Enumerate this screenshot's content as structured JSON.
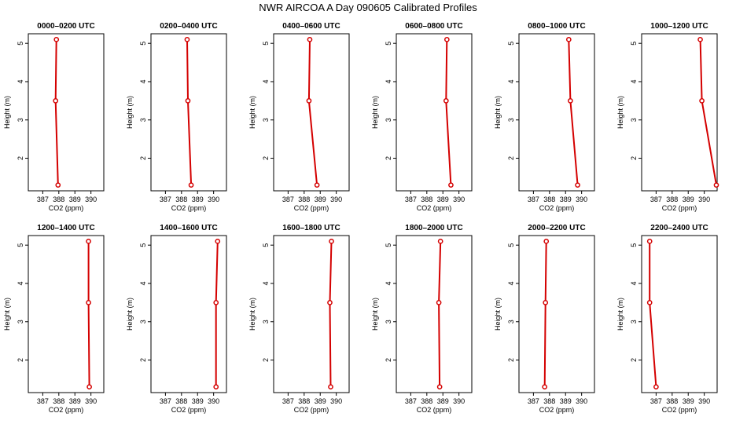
{
  "title": "NWR AIRCOA A  Day 090605  Calibrated Profiles",
  "colors": {
    "series": "#d40000",
    "axis": "#000000",
    "background": "#ffffff"
  },
  "chart_data": [
    {
      "type": "line",
      "title": "0000–0200 UTC",
      "xlabel": "CO2 (ppm)",
      "ylabel": "Height (m)",
      "xlim": [
        386.1,
        390.8
      ],
      "ylim": [
        1.15,
        5.25
      ],
      "xticks": [
        387,
        388,
        389,
        390
      ],
      "yticks": [
        2,
        3,
        4,
        5
      ],
      "x": [
        387.85,
        387.8,
        387.95
      ],
      "y": [
        5.1,
        3.5,
        1.3
      ]
    },
    {
      "type": "line",
      "title": "0200–0400 UTC",
      "xlabel": "CO2 (ppm)",
      "ylabel": "Height (m)",
      "xlim": [
        386.1,
        390.8
      ],
      "ylim": [
        1.15,
        5.25
      ],
      "xticks": [
        387,
        388,
        389,
        390
      ],
      "yticks": [
        2,
        3,
        4,
        5
      ],
      "x": [
        388.35,
        388.4,
        388.6
      ],
      "y": [
        5.1,
        3.5,
        1.3
      ]
    },
    {
      "type": "line",
      "title": "0400–0600 UTC",
      "xlabel": "CO2 (ppm)",
      "ylabel": "Height (m)",
      "xlim": [
        386.1,
        390.8
      ],
      "ylim": [
        1.15,
        5.25
      ],
      "xticks": [
        387,
        388,
        389,
        390
      ],
      "yticks": [
        2,
        3,
        4,
        5
      ],
      "x": [
        388.35,
        388.3,
        388.8
      ],
      "y": [
        5.1,
        3.5,
        1.3
      ]
    },
    {
      "type": "line",
      "title": "0600–0800 UTC",
      "xlabel": "CO2 (ppm)",
      "ylabel": "Height (m)",
      "xlim": [
        386.1,
        390.8
      ],
      "ylim": [
        1.15,
        5.25
      ],
      "xticks": [
        387,
        388,
        389,
        390
      ],
      "yticks": [
        2,
        3,
        4,
        5
      ],
      "x": [
        389.25,
        389.2,
        389.5
      ],
      "y": [
        5.1,
        3.5,
        1.3
      ]
    },
    {
      "type": "line",
      "title": "0800–1000 UTC",
      "xlabel": "CO2 (ppm)",
      "ylabel": "Height (m)",
      "xlim": [
        386.1,
        390.8
      ],
      "ylim": [
        1.15,
        5.25
      ],
      "xticks": [
        387,
        388,
        389,
        390
      ],
      "yticks": [
        2,
        3,
        4,
        5
      ],
      "x": [
        389.2,
        389.3,
        389.75
      ],
      "y": [
        5.1,
        3.5,
        1.3
      ]
    },
    {
      "type": "line",
      "title": "1000–1200 UTC",
      "xlabel": "CO2 (ppm)",
      "ylabel": "Height (m)",
      "xlim": [
        386.1,
        390.8
      ],
      "ylim": [
        1.15,
        5.25
      ],
      "xticks": [
        387,
        388,
        389,
        390
      ],
      "yticks": [
        2,
        3,
        4,
        5
      ],
      "x": [
        389.75,
        389.85,
        390.75
      ],
      "y": [
        5.1,
        3.5,
        1.3
      ]
    },
    {
      "type": "line",
      "title": "1200–1400 UTC",
      "xlabel": "CO2 (ppm)",
      "ylabel": "Height (m)",
      "xlim": [
        386.1,
        390.8
      ],
      "ylim": [
        1.15,
        5.25
      ],
      "xticks": [
        387,
        388,
        389,
        390
      ],
      "yticks": [
        2,
        3,
        4,
        5
      ],
      "x": [
        389.85,
        389.85,
        389.9
      ],
      "y": [
        5.1,
        3.5,
        1.3
      ]
    },
    {
      "type": "line",
      "title": "1400–1600 UTC",
      "xlabel": "CO2 (ppm)",
      "ylabel": "Height (m)",
      "xlim": [
        386.1,
        390.8
      ],
      "ylim": [
        1.15,
        5.25
      ],
      "xticks": [
        387,
        388,
        389,
        390
      ],
      "yticks": [
        2,
        3,
        4,
        5
      ],
      "x": [
        390.25,
        390.15,
        390.15
      ],
      "y": [
        5.1,
        3.5,
        1.3
      ]
    },
    {
      "type": "line",
      "title": "1600–1800 UTC",
      "xlabel": "CO2 (ppm)",
      "ylabel": "Height (m)",
      "xlim": [
        386.1,
        390.8
      ],
      "ylim": [
        1.15,
        5.25
      ],
      "xticks": [
        387,
        388,
        389,
        390
      ],
      "yticks": [
        2,
        3,
        4,
        5
      ],
      "x": [
        389.7,
        389.6,
        389.65
      ],
      "y": [
        5.1,
        3.5,
        1.3
      ]
    },
    {
      "type": "line",
      "title": "1800–2000 UTC",
      "xlabel": "CO2 (ppm)",
      "ylabel": "Height (m)",
      "xlim": [
        386.1,
        390.8
      ],
      "ylim": [
        1.15,
        5.25
      ],
      "xticks": [
        387,
        388,
        389,
        390
      ],
      "yticks": [
        2,
        3,
        4,
        5
      ],
      "x": [
        388.85,
        388.75,
        388.8
      ],
      "y": [
        5.1,
        3.5,
        1.3
      ]
    },
    {
      "type": "line",
      "title": "2000–2200 UTC",
      "xlabel": "CO2 (ppm)",
      "ylabel": "Height (m)",
      "xlim": [
        386.1,
        390.8
      ],
      "ylim": [
        1.15,
        5.25
      ],
      "xticks": [
        387,
        388,
        389,
        390
      ],
      "yticks": [
        2,
        3,
        4,
        5
      ],
      "x": [
        387.8,
        387.75,
        387.7
      ],
      "y": [
        5.1,
        3.5,
        1.3
      ]
    },
    {
      "type": "line",
      "title": "2200–2400 UTC",
      "xlabel": "CO2 (ppm)",
      "ylabel": "Height (m)",
      "xlim": [
        386.1,
        390.8
      ],
      "ylim": [
        1.15,
        5.25
      ],
      "xticks": [
        387,
        388,
        389,
        390
      ],
      "yticks": [
        2,
        3,
        4,
        5
      ],
      "x": [
        386.6,
        386.6,
        387.0
      ],
      "y": [
        5.1,
        3.5,
        1.3
      ]
    }
  ]
}
